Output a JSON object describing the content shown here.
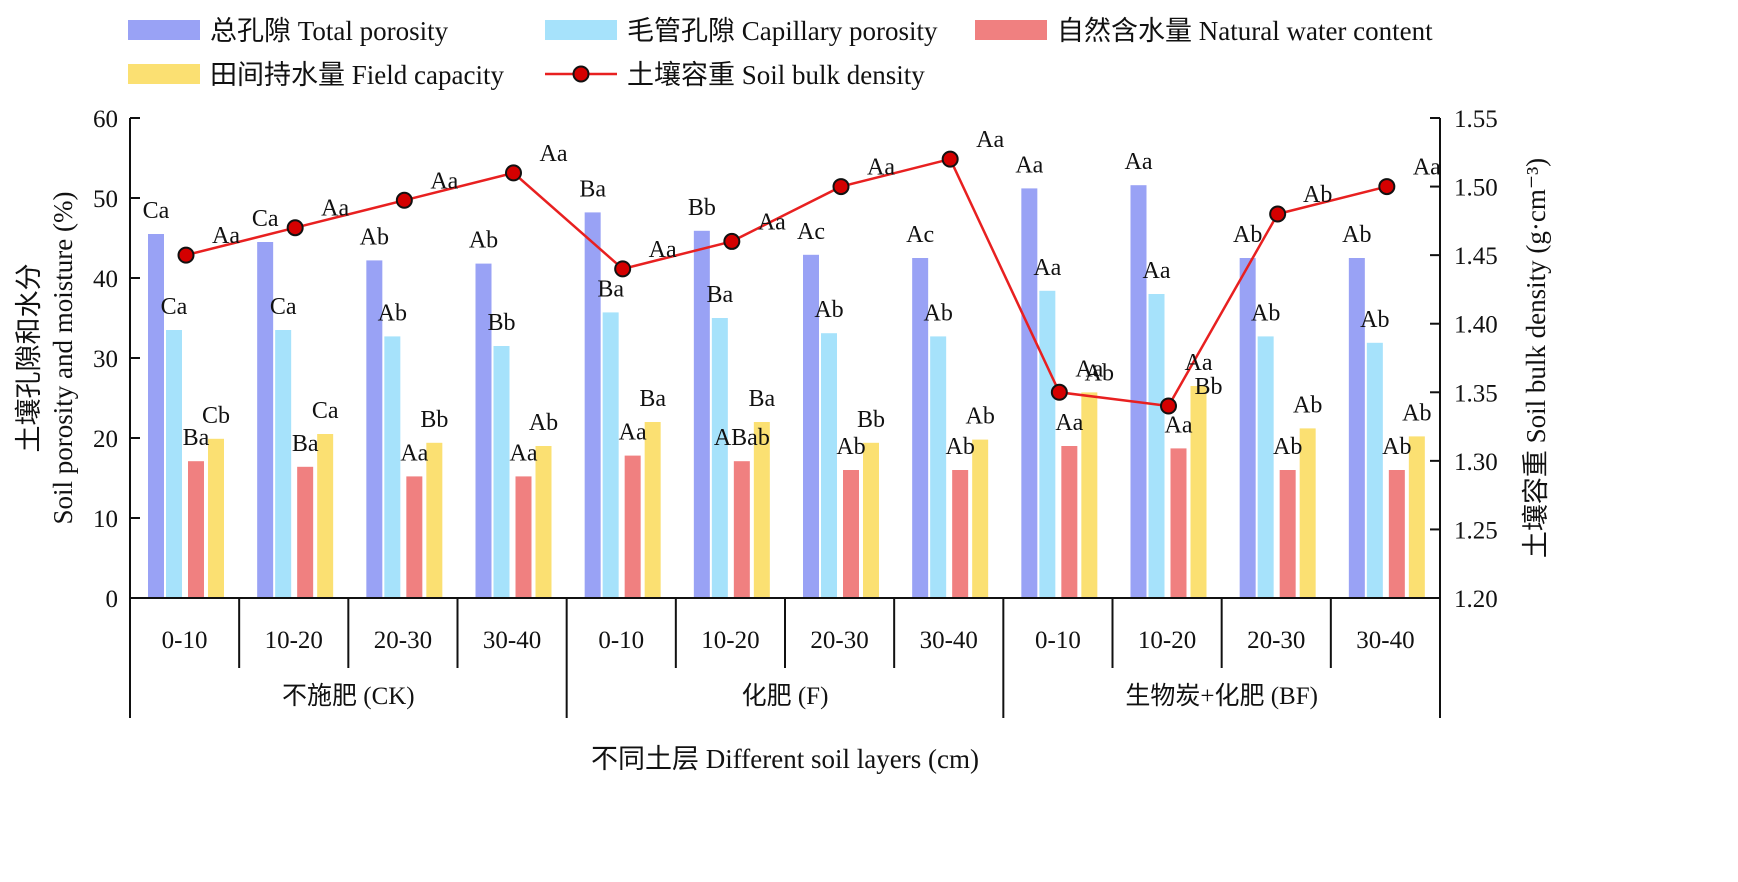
{
  "chart_data": {
    "type": "bar",
    "x_axis_title": "不同土层 Different soil layers (cm)",
    "y_left_title_cn": "土壤孔隙和水分",
    "y_left_title_en": "Soil porosity and moisture (%)",
    "y_right_title": "土壤容重 Soil bulk density (g·cm⁻³)",
    "ylim_left": [
      0,
      60
    ],
    "yticks_left": [
      "0",
      "10",
      "20",
      "30",
      "40",
      "50",
      "60"
    ],
    "ylim_right": [
      1.2,
      1.55
    ],
    "yticks_right": [
      "1.20",
      "1.25",
      "1.30",
      "1.35",
      "1.40",
      "1.45",
      "1.50",
      "1.55"
    ],
    "grid": false,
    "legend_position": "top",
    "groups": [
      {
        "label": "不施肥 (CK)",
        "layers": [
          "0-10",
          "10-20",
          "20-30",
          "30-40"
        ]
      },
      {
        "label": "化肥 (F)",
        "layers": [
          "0-10",
          "10-20",
          "20-30",
          "30-40"
        ]
      },
      {
        "label": "生物炭+化肥 (BF)",
        "layers": [
          "0-10",
          "10-20",
          "20-30",
          "30-40"
        ]
      }
    ],
    "bar_series": [
      {
        "name": "总孔隙 Total porosity",
        "color": "#99a2f5",
        "values": [
          45.5,
          44.5,
          42.2,
          41.8,
          48.2,
          45.9,
          42.9,
          42.5,
          51.2,
          51.6,
          42.5,
          42.5
        ],
        "labels": [
          "Ca",
          "Ca",
          "Ab",
          "Ab",
          "Ba",
          "Bb",
          "Ac",
          "Ac",
          "Aa",
          "Aa",
          "Ab",
          "Ab"
        ]
      },
      {
        "name": "毛管孔隙 Capillary porosity",
        "color": "#a6e2fb",
        "values": [
          33.5,
          33.5,
          32.7,
          31.5,
          35.7,
          35.0,
          33.1,
          32.7,
          38.4,
          38.0,
          32.7,
          31.9
        ],
        "labels": [
          "Ca",
          "Ca",
          "Ab",
          "Bb",
          "Ba",
          "Ba",
          "Ab",
          "Ab",
          "Aa",
          "Aa",
          "Ab",
          "Ab"
        ]
      },
      {
        "name": "自然含水量 Natural water content",
        "color": "#f08080",
        "values": [
          17.1,
          16.4,
          15.2,
          15.2,
          17.8,
          17.1,
          16.0,
          16.0,
          19.0,
          18.7,
          16.0,
          16.0
        ],
        "labels": [
          "Ba",
          "Ba",
          "Aa",
          "Aa",
          "Aa",
          "ABab",
          "Ab",
          "Ab",
          "Aa",
          "Aa",
          "Ab",
          "Ab"
        ]
      },
      {
        "name": "田间持水量 Field capacity",
        "color": "#fbe072",
        "values": [
          19.9,
          20.5,
          19.4,
          19.0,
          22.0,
          22.0,
          19.4,
          19.8,
          25.7,
          26.5,
          21.2,
          20.2
        ],
        "labels": [
          "Cb",
          "Ca",
          "Bb",
          "Ab",
          "Ba",
          "Ba",
          "Bb",
          "Ab",
          "Aa",
          "Aa",
          "Ab",
          "Ab"
        ]
      }
    ],
    "line_series": {
      "name": "土壤容重 Soil bulk density",
      "color": "#e82020",
      "marker_color": "#d40000",
      "values": [
        1.45,
        1.47,
        1.49,
        1.51,
        1.44,
        1.46,
        1.5,
        1.52,
        1.35,
        1.34,
        1.48,
        1.5
      ],
      "labels": [
        "Aa",
        "Aa",
        "Aa",
        "Aa",
        "Aa",
        "Aa",
        "Aa",
        "Aa",
        "Ab",
        "Bb",
        "Ab",
        "Aa"
      ]
    }
  }
}
